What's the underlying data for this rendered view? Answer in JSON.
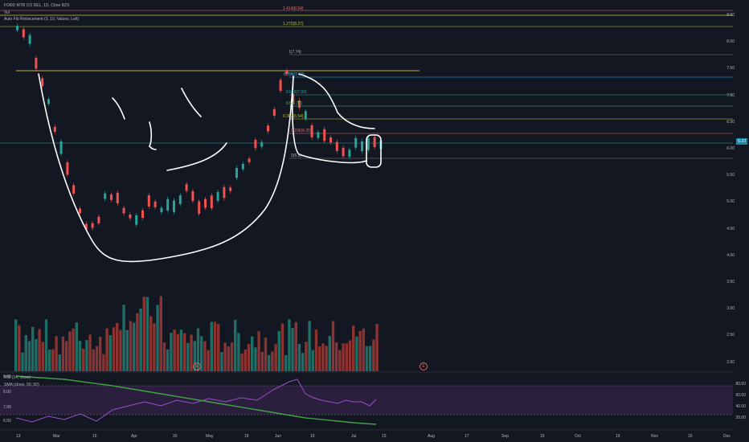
{
  "header": {
    "symbol_line": "FORD MTR CO DEL, 1D, Cboe BZX",
    "vol_label": "Vol",
    "fib_label": "Auto Fib Retracement (3, 10, Values, Left)"
  },
  "price_axis": [
    "8.50",
    "8.00",
    "7.50",
    "7.00",
    "6.50",
    "6.00",
    "5.50",
    "5.00",
    "4.50",
    "4.00",
    "3.50",
    "3.00",
    "2.50",
    "2.00"
  ],
  "current_price": "6.10",
  "fib_levels": [
    {
      "label": "1.414(8.54)",
      "color": "#e57373"
    },
    {
      "label": "1.272(8.27)",
      "color": "#c0ca33"
    },
    {
      "label": "1(7.74)",
      "color": "#b2b5be"
    },
    {
      "label": "0.786(7.33)",
      "color": "#4fc3f7"
    },
    {
      "label": "0.618(7.00)",
      "color": "#26a69a"
    },
    {
      "label": "0.5(6.77)",
      "color": "#66bb6a"
    },
    {
      "label": "0.382(6.54)",
      "color": "#c0ca33"
    },
    {
      "label": "0.236(6.25)",
      "color": "#e57373"
    },
    {
      "label": "0(5.8)",
      "color": "#b2b5be"
    }
  ],
  "time_axis": [
    "13",
    "Mar",
    "16",
    "Apr",
    "20",
    "May",
    "18",
    "Jun",
    "15",
    "Jul",
    "19",
    "Aug",
    "17",
    "Sep",
    "15",
    "Oct",
    "19",
    "Nov",
    "16",
    "Dec"
  ],
  "rsi": {
    "title": "RSI (14, close)",
    "sma_title": "SMA (close, 50, 50)",
    "left_axis": [
      "9.00",
      "8.00",
      "7.00",
      "6.00"
    ],
    "right_axis": [
      "80.00",
      "60.00",
      "40.00",
      "20.00"
    ]
  },
  "events": [
    "E",
    "E"
  ],
  "colors": {
    "up": "#26a69a",
    "down": "#ef5350",
    "bg": "#131722",
    "rsi_fill": "#2a1f3d"
  }
}
